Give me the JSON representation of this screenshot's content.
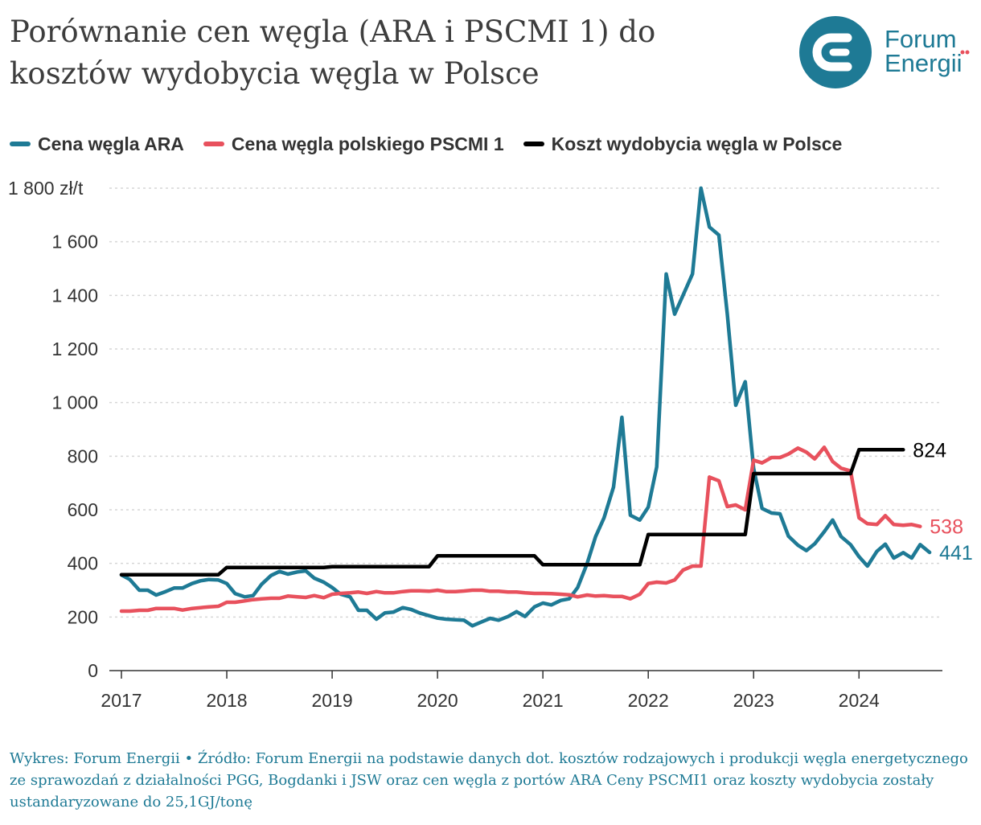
{
  "title": "Porównanie cen węgla (ARA i PSCMI 1) do kosztów wydobycia węgla w Polsce",
  "logo": {
    "line1": "Forum",
    "line2": "Energii",
    "color": "#1e7a95",
    "accent": "#e8515d"
  },
  "footer": "Wykres: Forum Energii • Źródło: Forum Energii na podstawie danych dot. kosztów rodzajowych i produkcji węgla energetycznego ze sprawozdań z działalności PGG, Bogdanki i JSW oraz cen węgla z portów ARA Ceny PSCMI1 oraz koszty wydobycia zostały ustandaryzowane do 25,1GJ/tonę",
  "chart_data": {
    "type": "line",
    "title": "Porównanie cen węgla (ARA i PSCMI 1) do kosztów wydobycia węgla w Polsce",
    "xlabel": "",
    "ylabel": "",
    "x_ticks": [
      "2017",
      "2018",
      "2019",
      "2020",
      "2021",
      "2022",
      "2023",
      "2024"
    ],
    "xlim": [
      2017,
      2024.7
    ],
    "y_ticks": [
      0,
      200,
      400,
      600,
      800,
      1000,
      1200,
      1400,
      1600,
      1800
    ],
    "y_tick_labels": [
      "0",
      "200",
      "400",
      "600",
      "800",
      "1 000",
      "1 200",
      "1 400",
      "1 600",
      "1 800 zł/t"
    ],
    "ylim": [
      0,
      1800
    ],
    "grid": true,
    "legend_position": "top-left",
    "series": [
      {
        "name": "Cena węgla ARA",
        "color": "#1e7a95",
        "end_label": "441",
        "points": [
          [
            2017.0,
            357
          ],
          [
            2017.08,
            340
          ],
          [
            2017.17,
            300
          ],
          [
            2017.25,
            300
          ],
          [
            2017.33,
            282
          ],
          [
            2017.42,
            295
          ],
          [
            2017.5,
            308
          ],
          [
            2017.58,
            308
          ],
          [
            2017.67,
            325
          ],
          [
            2017.75,
            335
          ],
          [
            2017.83,
            340
          ],
          [
            2017.92,
            338
          ],
          [
            2018.0,
            325
          ],
          [
            2018.08,
            287
          ],
          [
            2018.17,
            275
          ],
          [
            2018.25,
            280
          ],
          [
            2018.33,
            322
          ],
          [
            2018.42,
            355
          ],
          [
            2018.5,
            370
          ],
          [
            2018.58,
            360
          ],
          [
            2018.67,
            368
          ],
          [
            2018.75,
            372
          ],
          [
            2018.83,
            345
          ],
          [
            2018.92,
            330
          ],
          [
            2019.0,
            310
          ],
          [
            2019.08,
            285
          ],
          [
            2019.17,
            275
          ],
          [
            2019.25,
            225
          ],
          [
            2019.33,
            225
          ],
          [
            2019.42,
            192
          ],
          [
            2019.5,
            215
          ],
          [
            2019.58,
            218
          ],
          [
            2019.67,
            235
          ],
          [
            2019.75,
            228
          ],
          [
            2019.83,
            215
          ],
          [
            2019.92,
            205
          ],
          [
            2020.0,
            196
          ],
          [
            2020.08,
            192
          ],
          [
            2020.17,
            190
          ],
          [
            2020.25,
            188
          ],
          [
            2020.33,
            167
          ],
          [
            2020.42,
            182
          ],
          [
            2020.5,
            195
          ],
          [
            2020.58,
            188
          ],
          [
            2020.67,
            202
          ],
          [
            2020.75,
            220
          ],
          [
            2020.83,
            202
          ],
          [
            2020.92,
            238
          ],
          [
            2021.0,
            252
          ],
          [
            2021.08,
            245
          ],
          [
            2021.17,
            262
          ],
          [
            2021.25,
            268
          ],
          [
            2021.33,
            310
          ],
          [
            2021.42,
            400
          ],
          [
            2021.5,
            500
          ],
          [
            2021.58,
            570
          ],
          [
            2021.67,
            685
          ],
          [
            2021.75,
            945
          ],
          [
            2021.83,
            580
          ],
          [
            2021.92,
            562
          ],
          [
            2022.0,
            610
          ],
          [
            2022.08,
            760
          ],
          [
            2022.17,
            1480
          ],
          [
            2022.25,
            1330
          ],
          [
            2022.33,
            1400
          ],
          [
            2022.42,
            1480
          ],
          [
            2022.5,
            1800
          ],
          [
            2022.58,
            1655
          ],
          [
            2022.67,
            1625
          ],
          [
            2022.75,
            1330
          ],
          [
            2022.83,
            990
          ],
          [
            2022.92,
            1078
          ],
          [
            2023.0,
            755
          ],
          [
            2023.08,
            605
          ],
          [
            2023.17,
            588
          ],
          [
            2023.25,
            585
          ],
          [
            2023.33,
            502
          ],
          [
            2023.42,
            468
          ],
          [
            2023.5,
            448
          ],
          [
            2023.58,
            473
          ],
          [
            2023.67,
            518
          ],
          [
            2023.75,
            562
          ],
          [
            2023.83,
            500
          ],
          [
            2023.92,
            470
          ],
          [
            2024.0,
            425
          ],
          [
            2024.08,
            390
          ],
          [
            2024.17,
            445
          ],
          [
            2024.25,
            472
          ],
          [
            2024.33,
            420
          ],
          [
            2024.42,
            440
          ],
          [
            2024.5,
            420
          ],
          [
            2024.58,
            470
          ],
          [
            2024.67,
            441
          ]
        ]
      },
      {
        "name": "Cena węgla polskiego PSCMI 1",
        "color": "#e8515d",
        "end_label": "538",
        "points": [
          [
            2017.0,
            222
          ],
          [
            2017.08,
            222
          ],
          [
            2017.17,
            225
          ],
          [
            2017.25,
            225
          ],
          [
            2017.33,
            232
          ],
          [
            2017.42,
            232
          ],
          [
            2017.5,
            232
          ],
          [
            2017.58,
            226
          ],
          [
            2017.67,
            232
          ],
          [
            2017.75,
            235
          ],
          [
            2017.83,
            238
          ],
          [
            2017.92,
            240
          ],
          [
            2018.0,
            255
          ],
          [
            2018.08,
            255
          ],
          [
            2018.17,
            260
          ],
          [
            2018.25,
            265
          ],
          [
            2018.33,
            268
          ],
          [
            2018.42,
            270
          ],
          [
            2018.5,
            270
          ],
          [
            2018.58,
            278
          ],
          [
            2018.67,
            275
          ],
          [
            2018.75,
            273
          ],
          [
            2018.83,
            280
          ],
          [
            2018.92,
            272
          ],
          [
            2019.0,
            285
          ],
          [
            2019.08,
            288
          ],
          [
            2019.17,
            290
          ],
          [
            2019.25,
            293
          ],
          [
            2019.33,
            288
          ],
          [
            2019.42,
            295
          ],
          [
            2019.5,
            290
          ],
          [
            2019.58,
            290
          ],
          [
            2019.67,
            295
          ],
          [
            2019.75,
            298
          ],
          [
            2019.83,
            298
          ],
          [
            2019.92,
            296
          ],
          [
            2020.0,
            300
          ],
          [
            2020.08,
            295
          ],
          [
            2020.17,
            295
          ],
          [
            2020.25,
            297
          ],
          [
            2020.33,
            300
          ],
          [
            2020.42,
            300
          ],
          [
            2020.5,
            296
          ],
          [
            2020.58,
            296
          ],
          [
            2020.67,
            293
          ],
          [
            2020.75,
            293
          ],
          [
            2020.83,
            290
          ],
          [
            2020.92,
            288
          ],
          [
            2021.0,
            288
          ],
          [
            2021.08,
            287
          ],
          [
            2021.17,
            285
          ],
          [
            2021.25,
            283
          ],
          [
            2021.33,
            275
          ],
          [
            2021.42,
            282
          ],
          [
            2021.5,
            278
          ],
          [
            2021.58,
            280
          ],
          [
            2021.67,
            277
          ],
          [
            2021.75,
            277
          ],
          [
            2021.83,
            268
          ],
          [
            2021.92,
            285
          ],
          [
            2022.0,
            325
          ],
          [
            2022.08,
            330
          ],
          [
            2022.17,
            327
          ],
          [
            2022.25,
            338
          ],
          [
            2022.33,
            375
          ],
          [
            2022.42,
            390
          ],
          [
            2022.5,
            390
          ],
          [
            2022.58,
            722
          ],
          [
            2022.67,
            708
          ],
          [
            2022.75,
            612
          ],
          [
            2022.83,
            618
          ],
          [
            2022.92,
            600
          ],
          [
            2023.0,
            785
          ],
          [
            2023.08,
            775
          ],
          [
            2023.17,
            795
          ],
          [
            2023.25,
            795
          ],
          [
            2023.33,
            808
          ],
          [
            2023.42,
            830
          ],
          [
            2023.5,
            815
          ],
          [
            2023.58,
            790
          ],
          [
            2023.67,
            833
          ],
          [
            2023.75,
            780
          ],
          [
            2023.83,
            755
          ],
          [
            2023.92,
            745
          ],
          [
            2024.0,
            570
          ],
          [
            2024.08,
            548
          ],
          [
            2024.17,
            545
          ],
          [
            2024.25,
            578
          ],
          [
            2024.33,
            545
          ],
          [
            2024.42,
            542
          ],
          [
            2024.5,
            545
          ],
          [
            2024.58,
            538
          ]
        ]
      },
      {
        "name": "Koszt wydobycia węgla w Polsce",
        "color": "#000000",
        "end_label": "824",
        "points": [
          [
            2017.0,
            358
          ],
          [
            2017.92,
            358
          ],
          [
            2018.0,
            385
          ],
          [
            2018.92,
            385
          ],
          [
            2019.0,
            388
          ],
          [
            2019.92,
            388
          ],
          [
            2020.0,
            428
          ],
          [
            2020.92,
            428
          ],
          [
            2021.0,
            395
          ],
          [
            2021.92,
            395
          ],
          [
            2022.0,
            508
          ],
          [
            2022.92,
            508
          ],
          [
            2023.0,
            735
          ],
          [
            2023.92,
            735
          ],
          [
            2024.0,
            824
          ],
          [
            2024.42,
            824
          ]
        ]
      }
    ]
  }
}
